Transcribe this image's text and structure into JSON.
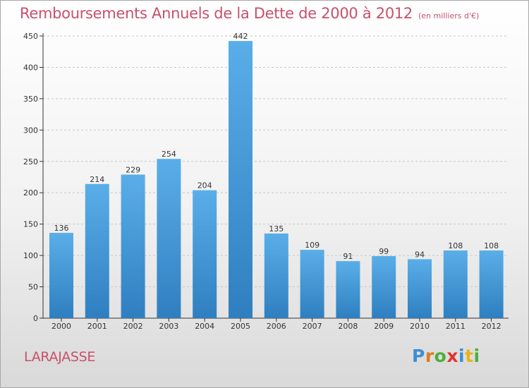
{
  "header": {
    "title": "Remboursements Annuels de la Dette de 2000 à 2012",
    "subtitle": "(en milliers d'€)"
  },
  "commune": "LARAJASSE",
  "logo": {
    "text": "Proxiti",
    "letters": [
      {
        "char": "P",
        "color": "#3a8fd6"
      },
      {
        "char": "r",
        "color": "#e07a1f"
      },
      {
        "char": "o",
        "color": "#4caf3c"
      },
      {
        "char": "x",
        "color": "#e0342f"
      },
      {
        "char": "i",
        "color": "#3a8fd6"
      },
      {
        "char": "t",
        "color": "#e9b21a"
      },
      {
        "char": "i",
        "color": "#4caf3c"
      }
    ]
  },
  "colors": {
    "bar_top": "#5aaee8",
    "bar_bottom": "#2f7fc0",
    "title": "#c8506b",
    "axis": "#333333",
    "grid": "#c8c8c8"
  },
  "chart_data": {
    "type": "bar",
    "categories": [
      "2000",
      "2001",
      "2002",
      "2003",
      "2004",
      "2005",
      "2006",
      "2007",
      "2008",
      "2009",
      "2010",
      "2011",
      "2012"
    ],
    "values": [
      136,
      214,
      229,
      254,
      204,
      442,
      135,
      109,
      91,
      99,
      94,
      108,
      108
    ],
    "ylim": [
      0,
      450
    ],
    "yticks": [
      0,
      50,
      100,
      150,
      200,
      250,
      300,
      350,
      400,
      450
    ],
    "grid": true,
    "xlabel": "",
    "ylabel": ""
  }
}
